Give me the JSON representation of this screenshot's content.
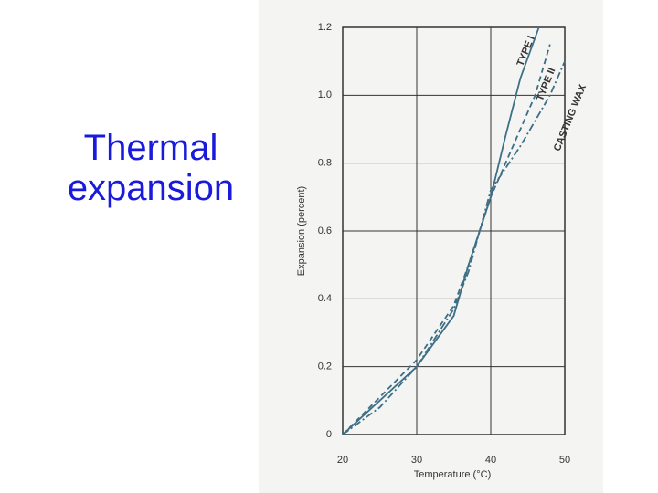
{
  "chart_data": {
    "type": "line",
    "title": "Thermal expansion",
    "x_label": "Temperature (°C)",
    "y_label": "Expansion (percent)",
    "xlim": [
      20,
      50
    ],
    "xticks": [
      20,
      30,
      40,
      50
    ],
    "ylim": [
      0,
      1.2
    ],
    "yticks": [
      0,
      0.2,
      0.4,
      0.6,
      0.8,
      {
        "value": 1,
        "label": "1.0"
      },
      1.2
    ],
    "grid": true,
    "series": [
      {
        "name": "TYPE I",
        "color": "#3d6f86",
        "dash": "none",
        "x": [
          20,
          25,
          30,
          35,
          37,
          40,
          42,
          44,
          46.5
        ],
        "values": [
          0,
          0.1,
          0.2,
          0.35,
          0.5,
          0.7,
          0.88,
          1.05,
          1.2
        ]
      },
      {
        "name": "TYPE II",
        "color": "#3d6f86",
        "dash": "6 4",
        "x": [
          20,
          25,
          30,
          35,
          37,
          40,
          43,
          46,
          48
        ],
        "values": [
          0,
          0.11,
          0.22,
          0.38,
          0.5,
          0.7,
          0.85,
          1.0,
          1.15
        ]
      },
      {
        "name": "CASTING WAX",
        "color": "#3d6f86",
        "dash": "8 3 2 3",
        "x": [
          20,
          25,
          30,
          35,
          37,
          40,
          44,
          48,
          50
        ],
        "values": [
          0,
          0.08,
          0.2,
          0.37,
          0.48,
          0.72,
          0.85,
          1.0,
          1.1
        ]
      }
    ]
  }
}
